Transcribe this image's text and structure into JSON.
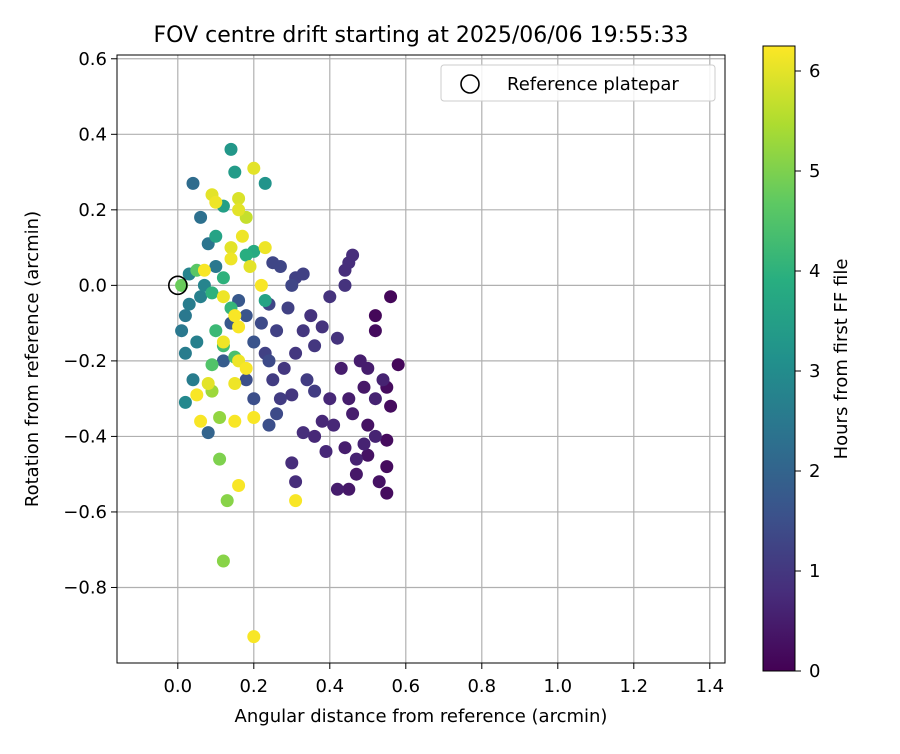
{
  "chart_data": {
    "type": "scatter",
    "title": "FOV centre drift starting at 2025/06/06 19:55:33",
    "xlabel": "Angular distance from reference (arcmin)",
    "ylabel": "Rotation from reference (arcmin)",
    "xlim": [
      -0.16,
      1.44
    ],
    "ylim": [
      -1.0,
      0.61
    ],
    "xticks": [
      0.0,
      0.2,
      0.4,
      0.6,
      0.8,
      1.0,
      1.2,
      1.4
    ],
    "yticks": [
      -0.8,
      -0.6,
      -0.4,
      -0.2,
      0.0,
      0.2,
      0.4,
      0.6
    ],
    "xtick_labels": [
      "0.0",
      "0.2",
      "0.4",
      "0.6",
      "0.8",
      "1.0",
      "1.2",
      "1.4"
    ],
    "ytick_labels": [
      "−0.8",
      "−0.6",
      "−0.4",
      "−0.2",
      "0.0",
      "0.2",
      "0.4",
      "0.6"
    ],
    "grid": true,
    "colormap": "viridis",
    "colorbar": {
      "label": "Hours from first FF file",
      "range": [
        0,
        6.25
      ],
      "ticks": [
        0,
        1,
        2,
        3,
        4,
        5,
        6
      ],
      "tick_labels": [
        "0",
        "1",
        "2",
        "3",
        "4",
        "5",
        "6"
      ]
    },
    "legend": {
      "location": "upper right",
      "entries": [
        "Reference platepar"
      ]
    },
    "reference_point": {
      "x": 0.0,
      "y": 0.0
    },
    "points": [
      {
        "x": 0.56,
        "y": -0.03,
        "h": 0.1
      },
      {
        "x": 0.58,
        "y": -0.21,
        "h": 0.1
      },
      {
        "x": 0.52,
        "y": -0.08,
        "h": 0.1
      },
      {
        "x": 0.52,
        "y": -0.12,
        "h": 0.2
      },
      {
        "x": 0.55,
        "y": -0.27,
        "h": 0.2
      },
      {
        "x": 0.56,
        "y": -0.32,
        "h": 0.2
      },
      {
        "x": 0.55,
        "y": -0.41,
        "h": 0.2
      },
      {
        "x": 0.55,
        "y": -0.48,
        "h": 0.2
      },
      {
        "x": 0.55,
        "y": -0.55,
        "h": 0.2
      },
      {
        "x": 0.53,
        "y": -0.52,
        "h": 0.3
      },
      {
        "x": 0.5,
        "y": -0.45,
        "h": 0.3
      },
      {
        "x": 0.5,
        "y": -0.37,
        "h": 0.3
      },
      {
        "x": 0.49,
        "y": -0.27,
        "h": 0.4
      },
      {
        "x": 0.47,
        "y": -0.5,
        "h": 0.4
      },
      {
        "x": 0.45,
        "y": -0.54,
        "h": 0.4
      },
      {
        "x": 0.42,
        "y": -0.54,
        "h": 0.5
      },
      {
        "x": 0.44,
        "y": -0.43,
        "h": 0.5
      },
      {
        "x": 0.46,
        "y": -0.34,
        "h": 0.5
      },
      {
        "x": 0.43,
        "y": -0.22,
        "h": 0.5
      },
      {
        "x": 0.45,
        "y": -0.3,
        "h": 0.5
      },
      {
        "x": 0.48,
        "y": -0.2,
        "h": 0.5
      },
      {
        "x": 0.5,
        "y": -0.22,
        "h": 0.5
      },
      {
        "x": 0.52,
        "y": -0.3,
        "h": 0.6
      },
      {
        "x": 0.54,
        "y": -0.25,
        "h": 0.6
      },
      {
        "x": 0.52,
        "y": -0.4,
        "h": 0.6
      },
      {
        "x": 0.49,
        "y": -0.42,
        "h": 0.6
      },
      {
        "x": 0.47,
        "y": -0.46,
        "h": 0.6
      },
      {
        "x": 0.41,
        "y": -0.37,
        "h": 0.7
      },
      {
        "x": 0.4,
        "y": -0.3,
        "h": 0.7
      },
      {
        "x": 0.38,
        "y": -0.36,
        "h": 0.7
      },
      {
        "x": 0.36,
        "y": -0.4,
        "h": 0.7
      },
      {
        "x": 0.39,
        "y": -0.44,
        "h": 0.7
      },
      {
        "x": 0.33,
        "y": -0.39,
        "h": 0.8
      },
      {
        "x": 0.3,
        "y": -0.47,
        "h": 0.8
      },
      {
        "x": 0.31,
        "y": -0.52,
        "h": 0.8
      },
      {
        "x": 0.45,
        "y": 0.06,
        "h": 0.8
      },
      {
        "x": 0.46,
        "y": 0.08,
        "h": 0.8
      },
      {
        "x": 0.44,
        "y": 0.04,
        "h": 0.8
      },
      {
        "x": 0.44,
        "y": 0.0,
        "h": 0.9
      },
      {
        "x": 0.4,
        "y": -0.03,
        "h": 0.9
      },
      {
        "x": 0.35,
        "y": -0.08,
        "h": 0.9
      },
      {
        "x": 0.38,
        "y": -0.11,
        "h": 0.9
      },
      {
        "x": 0.42,
        "y": -0.14,
        "h": 0.9
      },
      {
        "x": 0.36,
        "y": -0.16,
        "h": 1.0
      },
      {
        "x": 0.33,
        "y": -0.12,
        "h": 1.0
      },
      {
        "x": 0.31,
        "y": -0.18,
        "h": 1.0
      },
      {
        "x": 0.28,
        "y": -0.22,
        "h": 1.0
      },
      {
        "x": 0.3,
        "y": -0.29,
        "h": 1.0
      },
      {
        "x": 0.34,
        "y": -0.25,
        "h": 1.1
      },
      {
        "x": 0.36,
        "y": -0.28,
        "h": 1.1
      },
      {
        "x": 0.27,
        "y": -0.3,
        "h": 1.1
      },
      {
        "x": 0.25,
        "y": -0.25,
        "h": 1.1
      },
      {
        "x": 0.23,
        "y": -0.18,
        "h": 1.2
      },
      {
        "x": 0.26,
        "y": -0.12,
        "h": 1.2
      },
      {
        "x": 0.29,
        "y": -0.06,
        "h": 1.2
      },
      {
        "x": 0.31,
        "y": 0.02,
        "h": 1.2
      },
      {
        "x": 0.33,
        "y": 0.03,
        "h": 1.2
      },
      {
        "x": 0.3,
        "y": 0.0,
        "h": 1.3
      },
      {
        "x": 0.27,
        "y": 0.05,
        "h": 1.3
      },
      {
        "x": 0.25,
        "y": 0.06,
        "h": 1.3
      },
      {
        "x": 0.24,
        "y": -0.05,
        "h": 1.3
      },
      {
        "x": 0.22,
        "y": -0.1,
        "h": 1.4
      },
      {
        "x": 0.24,
        "y": -0.2,
        "h": 1.4
      },
      {
        "x": 0.26,
        "y": -0.34,
        "h": 1.4
      },
      {
        "x": 0.24,
        "y": -0.37,
        "h": 1.5
      },
      {
        "x": 0.2,
        "y": -0.3,
        "h": 1.5
      },
      {
        "x": 0.18,
        "y": -0.25,
        "h": 1.5
      },
      {
        "x": 0.2,
        "y": -0.15,
        "h": 1.6
      },
      {
        "x": 0.18,
        "y": -0.08,
        "h": 1.6
      },
      {
        "x": 0.16,
        "y": -0.04,
        "h": 1.7
      },
      {
        "x": 0.14,
        "y": -0.1,
        "h": 1.7
      },
      {
        "x": 0.12,
        "y": -0.2,
        "h": 1.8
      },
      {
        "x": 0.08,
        "y": -0.39,
        "h": 2.0
      },
      {
        "x": 0.04,
        "y": 0.27,
        "h": 2.2
      },
      {
        "x": 0.06,
        "y": 0.18,
        "h": 2.3
      },
      {
        "x": 0.08,
        "y": 0.11,
        "h": 2.4
      },
      {
        "x": 0.1,
        "y": 0.05,
        "h": 2.5
      },
      {
        "x": 0.02,
        "y": -0.08,
        "h": 2.5
      },
      {
        "x": 0.01,
        "y": -0.12,
        "h": 2.5
      },
      {
        "x": 0.03,
        "y": -0.05,
        "h": 2.6
      },
      {
        "x": 0.02,
        "y": -0.18,
        "h": 2.6
      },
      {
        "x": 0.04,
        "y": -0.25,
        "h": 2.6
      },
      {
        "x": 0.05,
        "y": -0.15,
        "h": 2.7
      },
      {
        "x": 0.06,
        "y": -0.03,
        "h": 2.7
      },
      {
        "x": 0.03,
        "y": 0.03,
        "h": 2.8
      },
      {
        "x": 0.07,
        "y": 0.0,
        "h": 2.8
      },
      {
        "x": 0.02,
        "y": -0.31,
        "h": 2.9
      },
      {
        "x": 0.23,
        "y": 0.27,
        "h": 3.2
      },
      {
        "x": 0.14,
        "y": 0.36,
        "h": 3.3
      },
      {
        "x": 0.15,
        "y": 0.3,
        "h": 3.4
      },
      {
        "x": 0.12,
        "y": 0.21,
        "h": 3.5
      },
      {
        "x": 0.1,
        "y": 0.13,
        "h": 3.6
      },
      {
        "x": 0.23,
        "y": -0.04,
        "h": 3.6
      },
      {
        "x": 0.2,
        "y": 0.09,
        "h": 3.8
      },
      {
        "x": 0.18,
        "y": 0.08,
        "h": 3.9
      },
      {
        "x": 0.12,
        "y": 0.02,
        "h": 4.0
      },
      {
        "x": 0.09,
        "y": -0.02,
        "h": 4.0
      },
      {
        "x": 0.14,
        "y": -0.06,
        "h": 4.1
      },
      {
        "x": 0.1,
        "y": -0.12,
        "h": 4.2
      },
      {
        "x": 0.12,
        "y": -0.16,
        "h": 4.3
      },
      {
        "x": 0.15,
        "y": -0.19,
        "h": 4.4
      },
      {
        "x": 0.09,
        "y": -0.21,
        "h": 4.5
      },
      {
        "x": 0.05,
        "y": 0.04,
        "h": 4.6
      },
      {
        "x": 0.01,
        "y": 0.0,
        "h": 4.8
      },
      {
        "x": 0.11,
        "y": -0.46,
        "h": 5.0
      },
      {
        "x": 0.13,
        "y": -0.57,
        "h": 5.1
      },
      {
        "x": 0.12,
        "y": -0.73,
        "h": 5.1
      },
      {
        "x": 0.11,
        "y": -0.35,
        "h": 5.2
      },
      {
        "x": 0.09,
        "y": -0.28,
        "h": 5.3
      },
      {
        "x": 0.18,
        "y": 0.18,
        "h": 5.7
      },
      {
        "x": 0.2,
        "y": 0.31,
        "h": 6.0
      },
      {
        "x": 0.16,
        "y": 0.23,
        "h": 5.9
      },
      {
        "x": 0.16,
        "y": 0.2,
        "h": 6.0
      },
      {
        "x": 0.09,
        "y": 0.24,
        "h": 6.0
      },
      {
        "x": 0.1,
        "y": 0.22,
        "h": 6.1
      },
      {
        "x": 0.14,
        "y": 0.1,
        "h": 6.0
      },
      {
        "x": 0.17,
        "y": 0.13,
        "h": 6.1
      },
      {
        "x": 0.14,
        "y": 0.07,
        "h": 6.1
      },
      {
        "x": 0.23,
        "y": 0.1,
        "h": 6.1
      },
      {
        "x": 0.19,
        "y": 0.05,
        "h": 6.0
      },
      {
        "x": 0.22,
        "y": 0.0,
        "h": 6.2
      },
      {
        "x": 0.12,
        "y": -0.03,
        "h": 6.1
      },
      {
        "x": 0.15,
        "y": -0.08,
        "h": 6.2
      },
      {
        "x": 0.16,
        "y": -0.11,
        "h": 6.2
      },
      {
        "x": 0.12,
        "y": -0.15,
        "h": 6.1
      },
      {
        "x": 0.16,
        "y": -0.2,
        "h": 6.1
      },
      {
        "x": 0.18,
        "y": -0.22,
        "h": 6.2
      },
      {
        "x": 0.15,
        "y": -0.26,
        "h": 6.1
      },
      {
        "x": 0.08,
        "y": -0.26,
        "h": 6.0
      },
      {
        "x": 0.05,
        "y": -0.29,
        "h": 6.2
      },
      {
        "x": 0.06,
        "y": -0.36,
        "h": 6.2
      },
      {
        "x": 0.15,
        "y": -0.36,
        "h": 6.2
      },
      {
        "x": 0.2,
        "y": -0.35,
        "h": 6.2
      },
      {
        "x": 0.16,
        "y": -0.53,
        "h": 6.2
      },
      {
        "x": 0.31,
        "y": -0.57,
        "h": 6.2
      },
      {
        "x": 0.2,
        "y": -0.93,
        "h": 6.2
      },
      {
        "x": 0.07,
        "y": 0.04,
        "h": 6.2
      }
    ]
  }
}
